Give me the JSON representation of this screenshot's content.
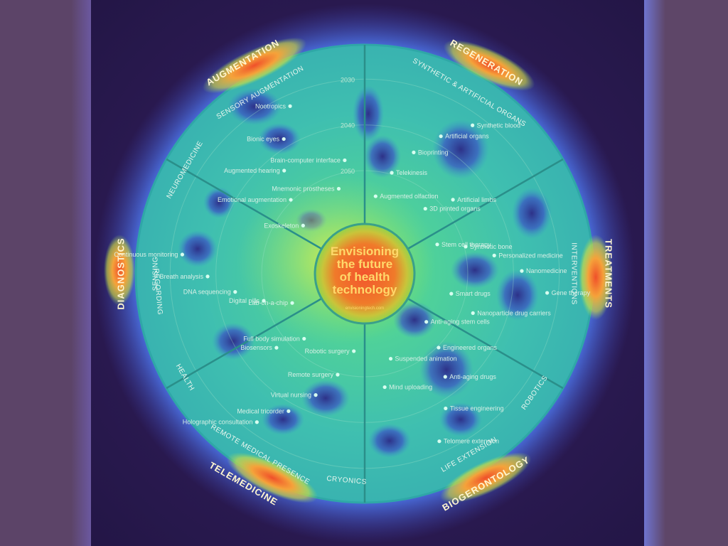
{
  "center": {
    "lines": [
      "Envisioning",
      "the future",
      "of health",
      "technology"
    ],
    "credit": "envisioningtech.com"
  },
  "years": [
    "2030",
    "2040",
    "2050"
  ],
  "sectors": [
    {
      "title": "AUGMENTATION",
      "sub": "SENSORY AUGMENTATION"
    },
    {
      "title": "REGENERATION",
      "sub": "SYNTHETIC & ARTIFICIAL ORGANS"
    },
    {
      "title": "TREATMENTS",
      "sub": "INTERVENTIONS"
    },
    {
      "title": "BIOGERONTOLOGY",
      "sub": "LIFE EXTENSION"
    },
    {
      "title": "TELEMEDICINE",
      "sub": "REMOTE MEDICAL PRESENCE"
    },
    {
      "title": "DIAGNOSTICS",
      "sub": "SENSING"
    }
  ],
  "subsectors_extra": [
    "NEUROMEDICINE",
    "RECORDING",
    "HEALTH",
    "CRYONICS",
    "ROBOTICS"
  ],
  "items": [
    {
      "label": "Exoskeleton"
    },
    {
      "label": "Emotional augmentation"
    },
    {
      "label": "Augmented hearing"
    },
    {
      "label": "Bionic eyes"
    },
    {
      "label": "Nootropics"
    },
    {
      "label": "Mnemonic prostheses"
    },
    {
      "label": "Brain-computer interface"
    },
    {
      "label": "Augmented olfaction"
    },
    {
      "label": "Telekinesis"
    },
    {
      "label": "Bioprinting"
    },
    {
      "label": "Artificial organs"
    },
    {
      "label": "Synthetic blood"
    },
    {
      "label": "3D printed organs"
    },
    {
      "label": "Artificial limbs"
    },
    {
      "label": "Stem cell therapy"
    },
    {
      "label": "Synthetic bone"
    },
    {
      "label": "Personalized medicine"
    },
    {
      "label": "Nanomedicine"
    },
    {
      "label": "Gene therapy"
    },
    {
      "label": "Smart drugs"
    },
    {
      "label": "Nanoparticle drug carriers"
    },
    {
      "label": "Anti-aging stem cells"
    },
    {
      "label": "Engineered organs"
    },
    {
      "label": "Anti-aging drugs"
    },
    {
      "label": "Tissue engineering"
    },
    {
      "label": "Telomere extension"
    },
    {
      "label": "Suspended animation"
    },
    {
      "label": "Mind uploading"
    },
    {
      "label": "Robotic surgery"
    },
    {
      "label": "Remote surgery"
    },
    {
      "label": "Virtual nursing"
    },
    {
      "label": "Medical tricorder"
    },
    {
      "label": "Holographic consultation"
    },
    {
      "label": "Full body simulation"
    },
    {
      "label": "Biosensors"
    },
    {
      "label": "Lab-on-a-chip"
    },
    {
      "label": "Digital pills"
    },
    {
      "label": "DNA sequencing"
    },
    {
      "label": "Breath analysis"
    },
    {
      "label": "Continuous monitoring"
    }
  ]
}
